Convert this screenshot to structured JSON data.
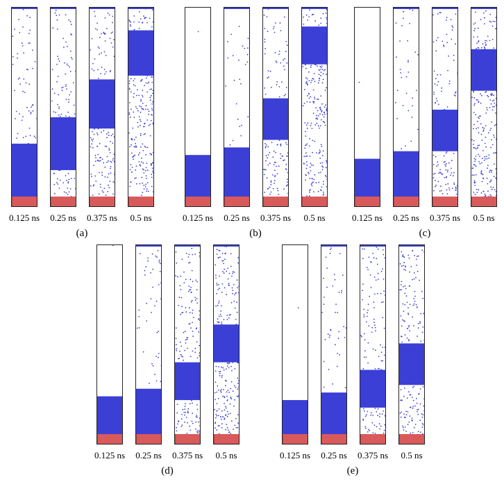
{
  "colors": {
    "particle": "#3b3fd6",
    "substrate": "#d95a5a",
    "frame": "#222222"
  },
  "panels": [
    {
      "label": "(a)",
      "times": [
        "0.125 ns",
        "0.25 ns",
        "0.375 ns",
        "0.5 ns"
      ]
    },
    {
      "label": "(b)",
      "times": [
        "0.125 ns",
        "0.25 ns",
        "0.375 ns",
        "0.5 ns"
      ]
    },
    {
      "label": "(c)",
      "times": [
        "0.125 ns",
        "0.25 ns",
        "0.375 ns",
        "0.5 ns"
      ]
    },
    {
      "label": "(d)",
      "times": [
        "0.125 ns",
        "0.25 ns",
        "0.375 ns",
        "0.5 ns"
      ]
    },
    {
      "label": "(e)",
      "times": [
        "0.125 ns",
        "0.25 ns",
        "0.375 ns",
        "0.5 ns"
      ]
    }
  ]
}
